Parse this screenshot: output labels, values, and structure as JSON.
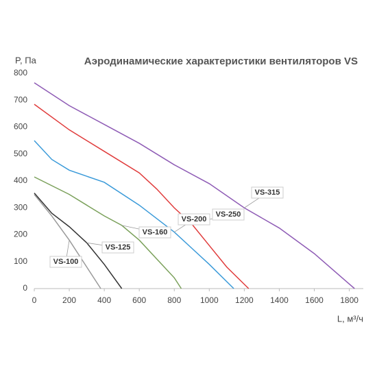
{
  "chart_data": {
    "type": "line",
    "title": "Аэродинамические характеристики вентиляторов VS",
    "y_label": "P, Па",
    "x_label": "L, м³/ч",
    "xlim": [
      0,
      1880
    ],
    "xticks": [
      0,
      200,
      400,
      600,
      800,
      1000,
      1200,
      1400,
      1600,
      1800
    ],
    "ylim": [
      0,
      800
    ],
    "yticks": [
      0,
      100,
      200,
      300,
      400,
      500,
      600,
      700,
      800
    ],
    "grid": false,
    "series": [
      {
        "name": "VS-315",
        "color": "#8e5bb5",
        "x": [
          0,
          200,
          400,
          600,
          800,
          1000,
          1200,
          1400,
          1600,
          1830
        ],
        "values": [
          765,
          680,
          610,
          540,
          460,
          390,
          300,
          225,
          130,
          0
        ]
      },
      {
        "name": "VS-250",
        "color": "#e03b3b",
        "x": [
          0,
          200,
          400,
          600,
          700,
          800,
          900,
          1000,
          1100,
          1225
        ],
        "values": [
          685,
          590,
          510,
          430,
          370,
          300,
          240,
          160,
          80,
          0
        ]
      },
      {
        "name": "VS-200",
        "color": "#3a9ad9",
        "x": [
          0,
          100,
          200,
          400,
          600,
          800,
          900,
          1000,
          1140
        ],
        "values": [
          550,
          480,
          440,
          395,
          310,
          210,
          150,
          90,
          0
        ]
      },
      {
        "name": "VS-160",
        "color": "#7aa05a",
        "x": [
          0,
          200,
          400,
          500,
          600,
          700,
          800,
          840
        ],
        "values": [
          415,
          350,
          270,
          235,
          180,
          110,
          40,
          0
        ]
      },
      {
        "name": "VS-125",
        "color": "#333333",
        "x": [
          0,
          100,
          200,
          300,
          400,
          500
        ],
        "values": [
          355,
          280,
          230,
          170,
          90,
          0
        ]
      },
      {
        "name": "VS-100",
        "color": "#999999",
        "x": [
          0,
          100,
          200,
          300,
          380
        ],
        "values": [
          350,
          270,
          180,
          80,
          0
        ]
      }
    ]
  }
}
